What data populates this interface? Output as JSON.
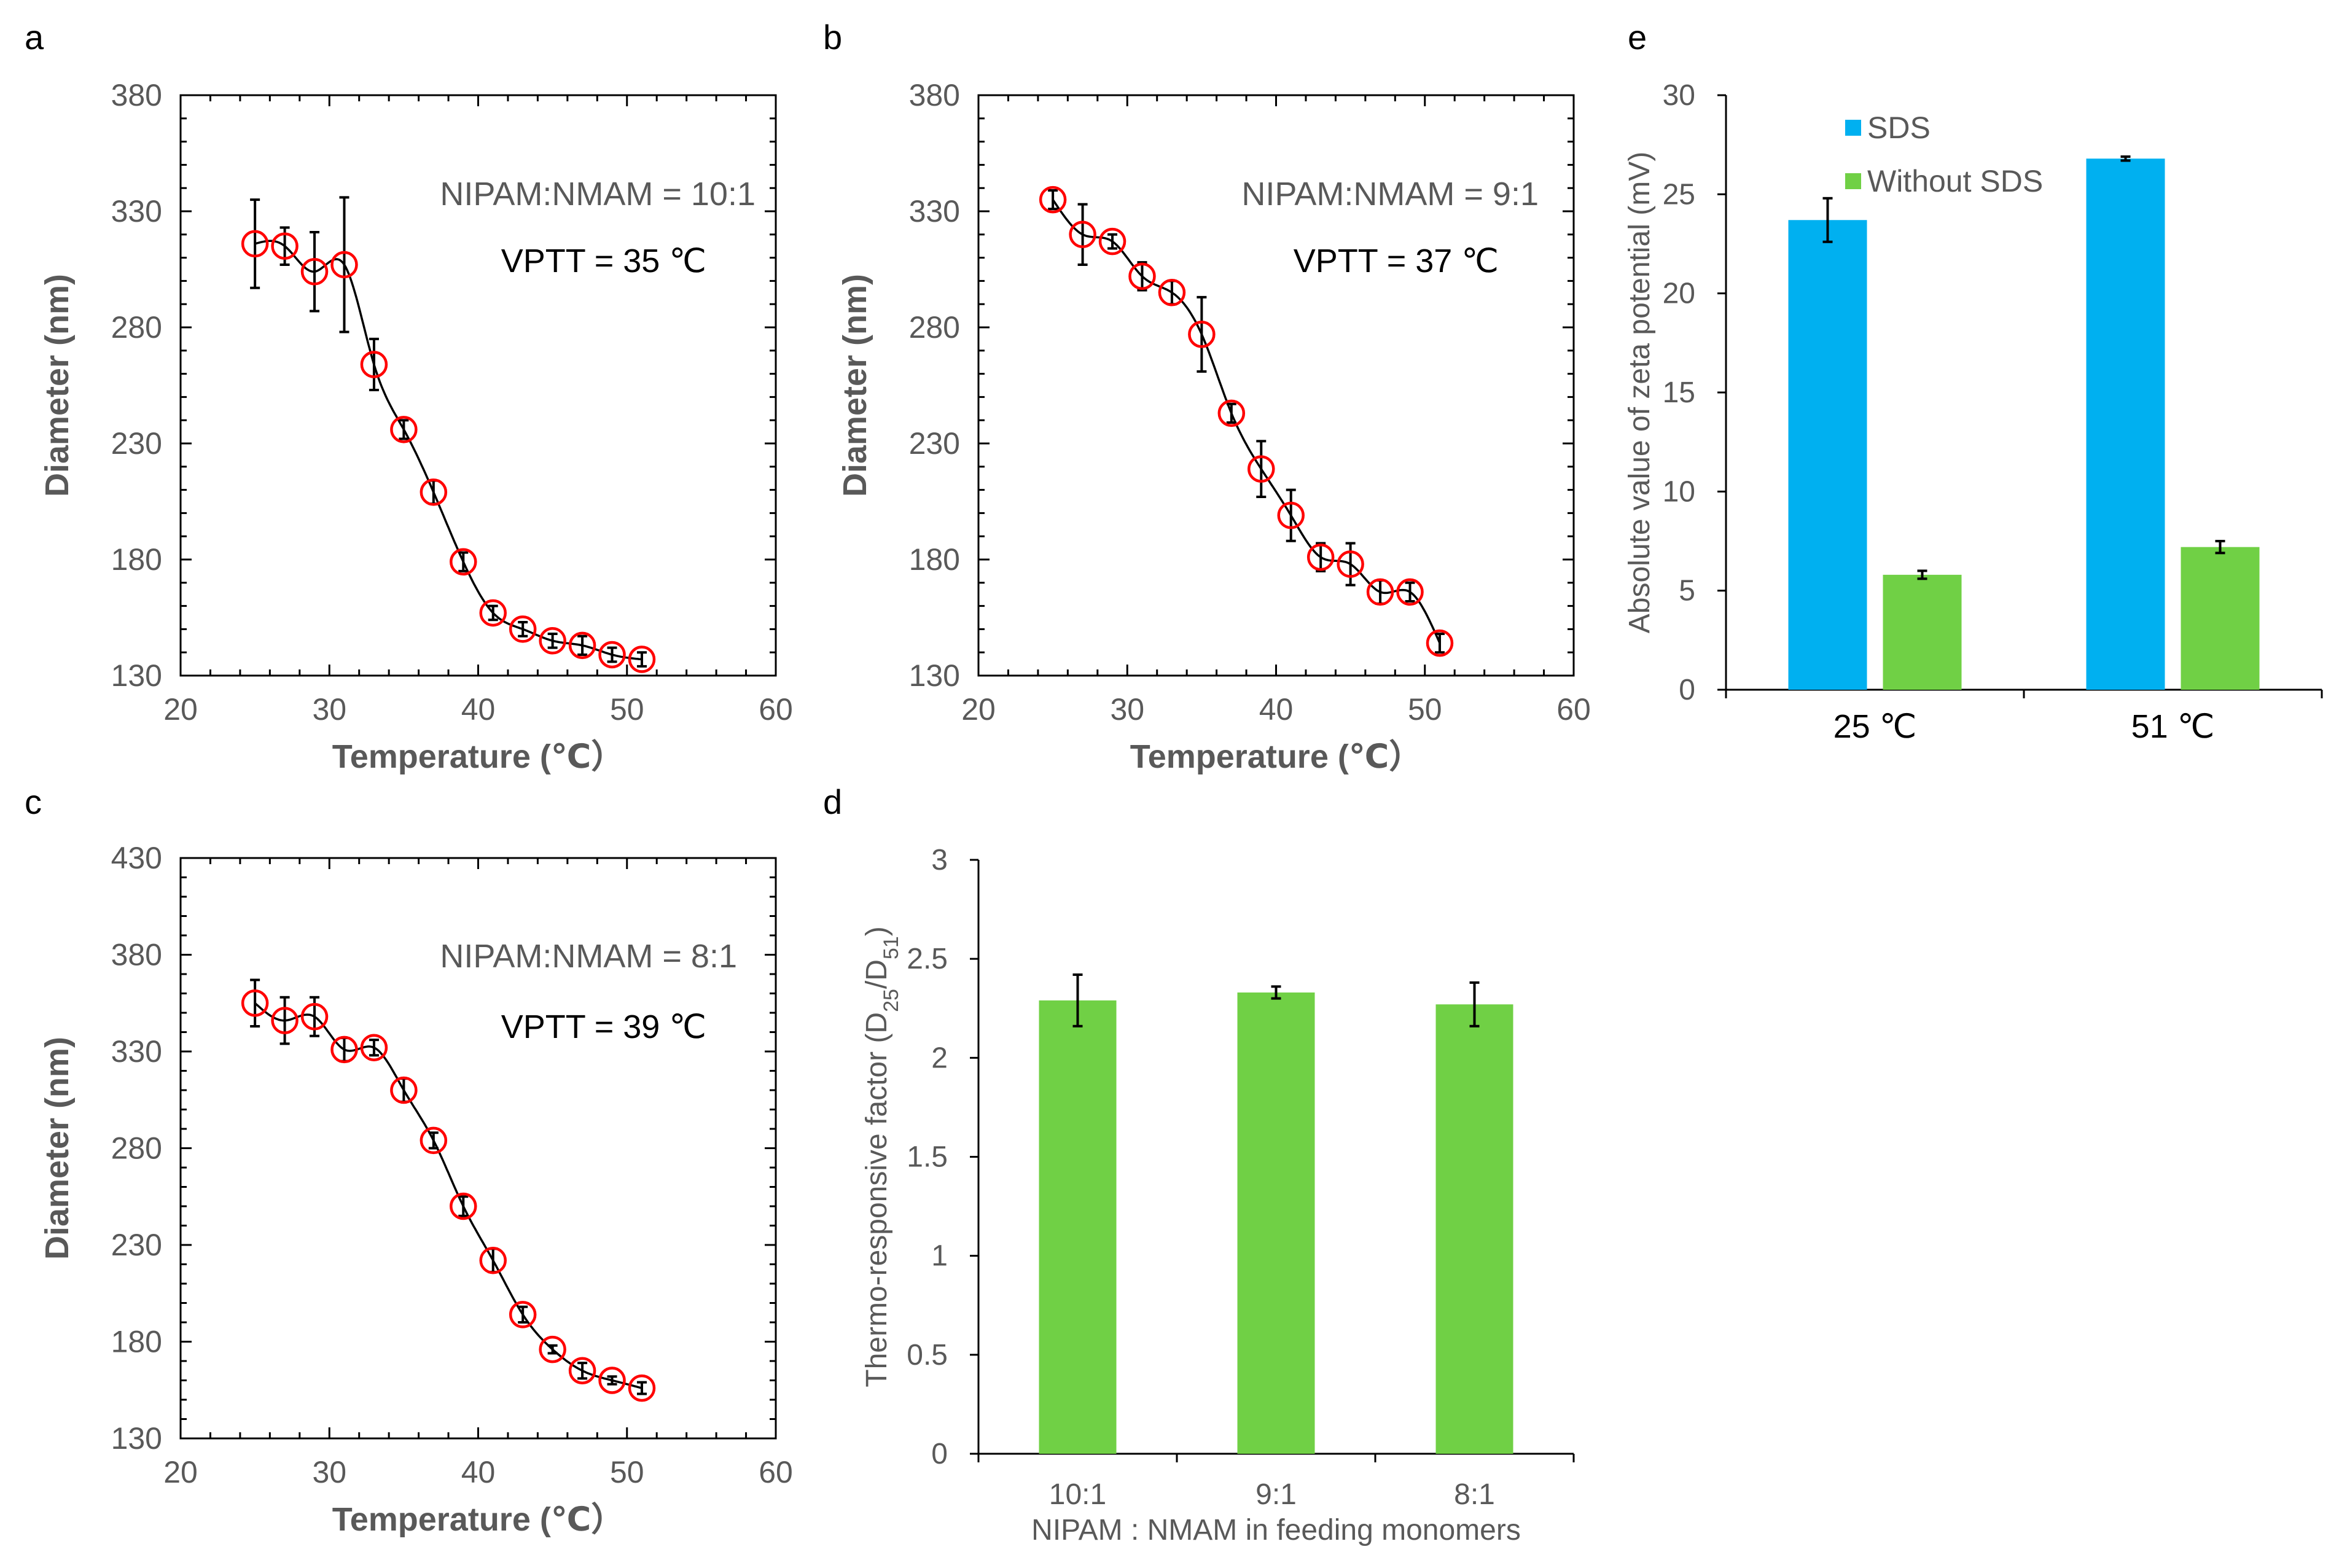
{
  "chart_data": [
    {
      "panel": "a",
      "type": "scatter",
      "xlabel": "Temperature (℃）",
      "ylabel": "Diameter (nm)",
      "xlim": [
        20,
        60
      ],
      "ylim": [
        130,
        380
      ],
      "xticks": [
        20,
        30,
        40,
        50,
        60
      ],
      "yticks": [
        130,
        180,
        230,
        280,
        330,
        380
      ],
      "annotations": [
        "NIPAM:NMAM = 10:1",
        "VPTT = 35 ℃"
      ],
      "x": [
        25,
        27,
        29,
        31,
        33,
        35,
        37,
        39,
        41,
        43,
        45,
        47,
        49,
        51
      ],
      "y": [
        316,
        315,
        304,
        307,
        264,
        236,
        209,
        179,
        157,
        150,
        145,
        143,
        139,
        137
      ],
      "err": [
        19,
        8,
        17,
        29,
        11,
        4,
        5,
        4,
        3,
        3,
        3,
        4,
        3,
        3
      ],
      "fit": true
    },
    {
      "panel": "b",
      "type": "scatter",
      "xlabel": "Temperature (℃）",
      "ylabel": "Diameter (nm)",
      "xlim": [
        20,
        60
      ],
      "ylim": [
        130,
        380
      ],
      "xticks": [
        20,
        30,
        40,
        50,
        60
      ],
      "yticks": [
        130,
        180,
        230,
        280,
        330,
        380
      ],
      "annotations": [
        "NIPAM:NMAM = 9:1",
        "VPTT = 37 ℃"
      ],
      "x": [
        25,
        27,
        29,
        31,
        33,
        35,
        37,
        39,
        41,
        43,
        45,
        47,
        49,
        51
      ],
      "y": [
        335,
        320,
        317,
        302,
        295,
        277,
        243,
        219,
        199,
        181,
        178,
        166,
        166,
        144
      ],
      "err": [
        4,
        13,
        3,
        6,
        5,
        16,
        4,
        12,
        11,
        6,
        9,
        5,
        4,
        4
      ],
      "fit": true
    },
    {
      "panel": "c",
      "type": "scatter",
      "xlabel": "Temperature (℃）",
      "ylabel": "Diameter (nm)",
      "xlim": [
        20,
        60
      ],
      "ylim": [
        130,
        430
      ],
      "xticks": [
        20,
        30,
        40,
        50,
        60
      ],
      "yticks": [
        130,
        180,
        230,
        280,
        330,
        380,
        430
      ],
      "annotations": [
        "NIPAM:NMAM = 8:1",
        "VPTT = 39 ℃"
      ],
      "x": [
        25,
        27,
        29,
        31,
        33,
        35,
        37,
        39,
        41,
        43,
        45,
        47,
        49,
        51
      ],
      "y": [
        355,
        346,
        348,
        331,
        332,
        310,
        284,
        250,
        222,
        194,
        176,
        165,
        160,
        156
      ],
      "err": [
        12,
        12,
        10,
        6,
        4,
        6,
        4,
        5,
        6,
        4,
        2,
        4,
        2,
        3
      ],
      "fit": true
    },
    {
      "panel": "d",
      "type": "bar",
      "xlabel": "NIPAM : NMAM in feeding monomers",
      "ylabel": "Thermo-responsive factor (D25/D51)",
      "ylabel_main": "Thermo-responsive factor (D",
      "ylabel_sub1": "25",
      "ylabel_mid": "/D",
      "ylabel_sub2": "51",
      "ylabel_end": ")",
      "categories": [
        "10:1",
        "9:1",
        "8:1"
      ],
      "values": [
        2.29,
        2.33,
        2.27
      ],
      "err": [
        0.13,
        0.03,
        0.11
      ],
      "ylim": [
        0,
        3
      ],
      "yticks": [
        "0",
        "0.5",
        "1",
        "1.5",
        "2",
        "2.5",
        "3"
      ],
      "color": "#70d045"
    },
    {
      "panel": "e",
      "type": "bar",
      "xlabel": "",
      "ylabel": "Absolute value of zeta potential (mV)",
      "categories": [
        "25 ℃",
        "51 ℃"
      ],
      "series": [
        {
          "name": "SDS",
          "values": [
            23.7,
            26.8
          ],
          "err": [
            1.1,
            0.1
          ],
          "color": "#00b0f0"
        },
        {
          "name": "Without SDS",
          "values": [
            5.8,
            7.2
          ],
          "err": [
            0.2,
            0.3
          ],
          "color": "#70d045"
        }
      ],
      "ylim": [
        0,
        30
      ],
      "yticks": [
        "0",
        "5",
        "10",
        "15",
        "20",
        "25",
        "30"
      ],
      "legend": "top-left"
    }
  ]
}
